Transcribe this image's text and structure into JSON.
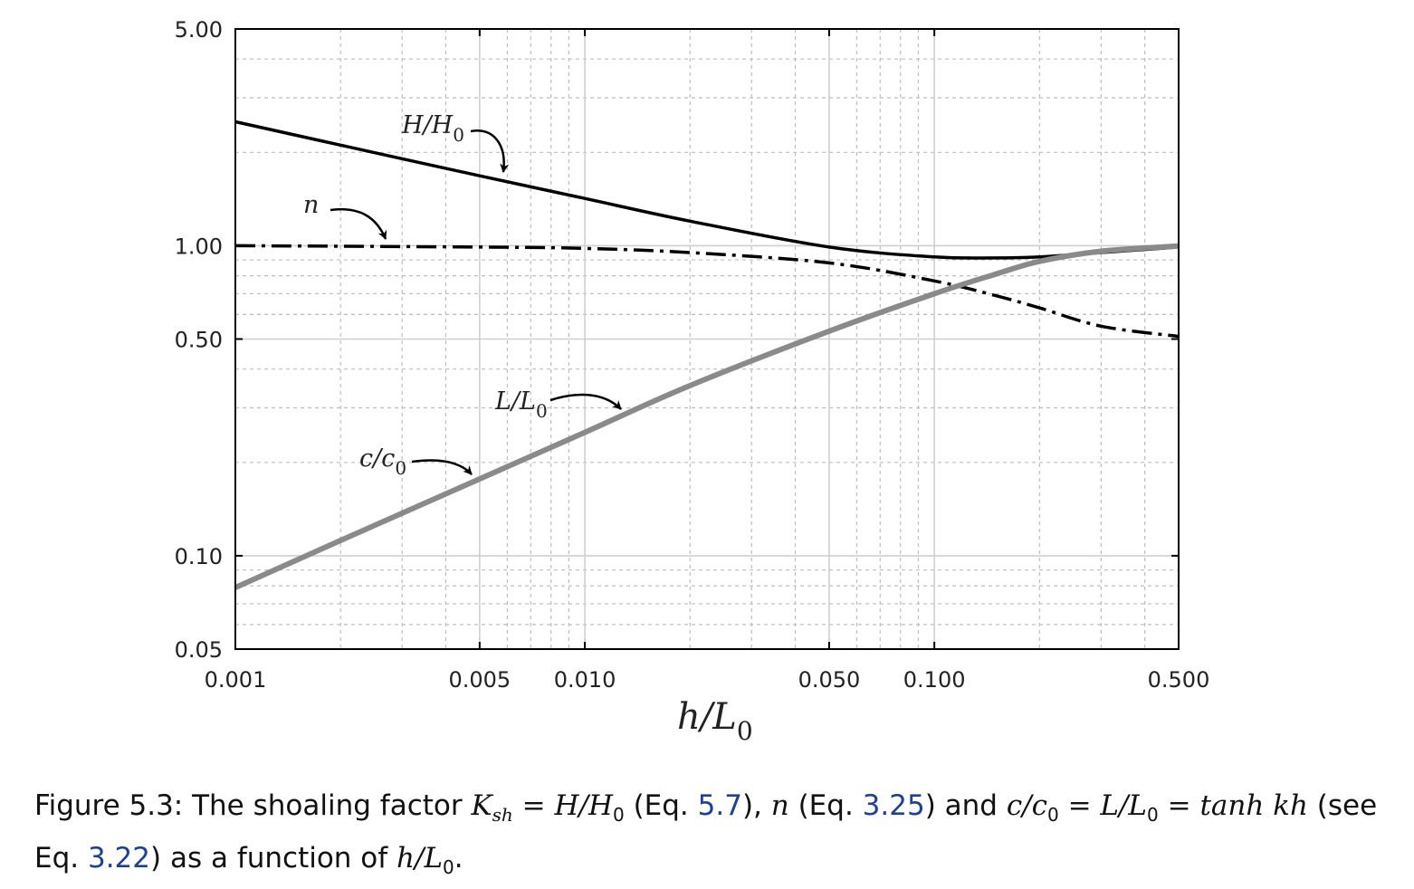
{
  "chart_data": {
    "type": "line",
    "xscale": "log",
    "yscale": "log",
    "xlim": [
      0.001,
      0.5
    ],
    "ylim": [
      0.05,
      5.0
    ],
    "grid": true,
    "x_ticks": [
      "0.001",
      "0.005",
      "0.010",
      "0.050",
      "0.100",
      "0.500"
    ],
    "y_ticks": [
      "5.00",
      "1.00",
      "0.50",
      "0.10",
      "0.05"
    ],
    "xlabel": "h/L0",
    "series": [
      {
        "name": "H/H0",
        "style": "solid-black",
        "x": [
          0.001,
          0.002,
          0.005,
          0.01,
          0.02,
          0.05,
          0.1,
          0.15,
          0.2,
          0.3,
          0.5
        ],
        "y": [
          2.51,
          2.11,
          1.68,
          1.42,
          1.2,
          0.99,
          0.92,
          0.913,
          0.92,
          0.95,
          0.99
        ]
      },
      {
        "name": "n",
        "style": "dashdot-black",
        "x": [
          0.001,
          0.005,
          0.01,
          0.02,
          0.05,
          0.1,
          0.15,
          0.2,
          0.3,
          0.5
        ],
        "y": [
          1.0,
          0.99,
          0.98,
          0.95,
          0.88,
          0.77,
          0.69,
          0.63,
          0.55,
          0.51
        ]
      },
      {
        "name": "L/L0 = c/c0",
        "style": "solid-gray",
        "x": [
          0.001,
          0.002,
          0.005,
          0.01,
          0.02,
          0.05,
          0.1,
          0.15,
          0.2,
          0.3,
          0.5
        ],
        "y": [
          0.079,
          0.112,
          0.177,
          0.25,
          0.354,
          0.53,
          0.7,
          0.81,
          0.89,
          0.96,
          0.997
        ]
      }
    ],
    "annotations": [
      {
        "text": "H/H",
        "sub": "0",
        "points_to": "H/H0"
      },
      {
        "text": "n",
        "sub": "",
        "points_to": "n"
      },
      {
        "text": "L/L",
        "sub": "0",
        "points_to": "L/L0 = c/c0"
      },
      {
        "text": "c/c",
        "sub": "0",
        "points_to": "L/L0 = c/c0"
      }
    ]
  },
  "caption": {
    "prefix": "Figure 5.3: The shoaling factor ",
    "ksh": "K",
    "ksh_sub": "sh",
    "eq1": " = H/H",
    "eq1_sub": "0",
    "t1": " (Eq. ",
    "ref1": "5.7",
    "t2": "), ",
    "n": "n",
    "t3": " (Eq. ",
    "ref2": "3.25",
    "t4": ") and ",
    "cc": "c/c",
    "cc_sub": "0",
    "eq2": " = L/L",
    "eq2_sub": "0",
    "eq3": " = tanh kh",
    "t5": " (see Eq. ",
    "ref3": "3.22",
    "t6": ") as a function of ",
    "hl": "h/L",
    "hl_sub": "0",
    "t7": "."
  }
}
